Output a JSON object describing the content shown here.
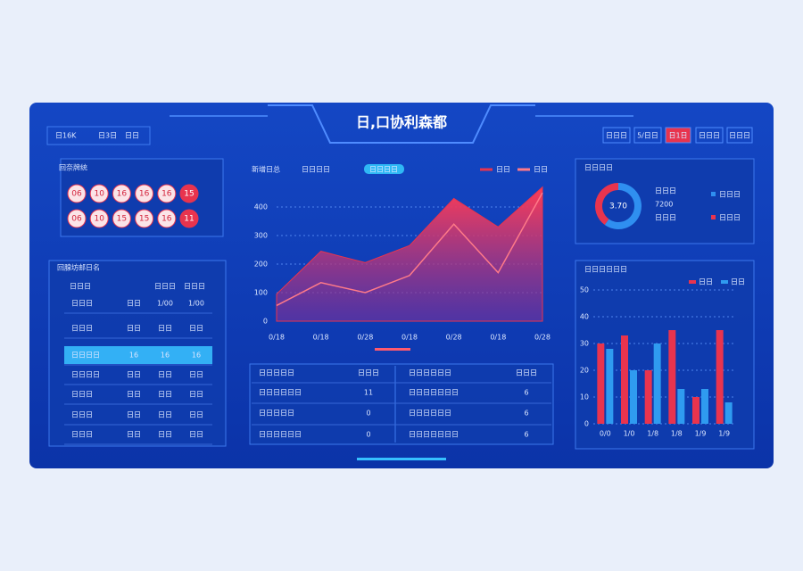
{
  "header": {
    "title": "日,口协利森都",
    "tab": [
      "日16K",
      "日3日",
      "日日"
    ],
    "buttons": [
      "日日日",
      "5/日日",
      "日1日",
      "日日日",
      "日日日"
    ]
  },
  "balls": {
    "title": "回奈牌统",
    "rows": [
      [
        "06",
        "10",
        "16",
        "16",
        "16",
        "15"
      ],
      [
        "06",
        "10",
        "15",
        "15",
        "16",
        "11"
      ]
    ]
  },
  "left_table": {
    "title": "回腺坊邮日名",
    "header": [
      "日日日",
      "日日日",
      "日日日"
    ],
    "rows": [
      [
        "日日日",
        "日日",
        "1/00",
        "1/00"
      ],
      [
        "日日日",
        "日日",
        "日日",
        "日日"
      ],
      [
        "日日日日",
        "16",
        "16",
        "16"
      ],
      [
        "日日日日",
        "日日",
        "日日",
        "日日"
      ],
      [
        "日日日",
        "日日",
        "日日",
        "日日"
      ],
      [
        "日日日",
        "日日",
        "日日",
        "日日"
      ],
      [
        "日日日",
        "日日",
        "日日",
        "日日"
      ]
    ]
  },
  "center_table": {
    "left_header": [
      "日日日日日",
      "日日日"
    ],
    "left_rows": [
      [
        "日日日日日日",
        "11"
      ],
      [
        "日日日日日",
        "0"
      ],
      [
        "日日日日日日",
        "0"
      ]
    ],
    "right_header": [
      "日日日日日日",
      "日日日"
    ],
    "right_rows": [
      [
        "日日日日日日日",
        "6"
      ],
      [
        "日日日日日日",
        "6"
      ],
      [
        "日日日日日日日",
        "6"
      ]
    ]
  },
  "chart_data": [
    {
      "type": "area",
      "title": "新增日总",
      "subtitle": "日日日日",
      "badge": "日日日日",
      "categories": [
        "0/18",
        "0/18",
        "0/28",
        "0/18",
        "0/28",
        "0/18",
        "0/28"
      ],
      "series": [
        {
          "name": "日日",
          "color": "#e8344e",
          "fill": true,
          "values": [
            95,
            245,
            205,
            265,
            430,
            330,
            470
          ]
        },
        {
          "name": "日日",
          "color": "#ff7a88",
          "fill": false,
          "values": [
            55,
            135,
            100,
            160,
            340,
            170,
            450
          ]
        }
      ],
      "ylim": [
        0,
        500
      ],
      "yticks": [
        0,
        100,
        200,
        300,
        400
      ],
      "grid": true
    },
    {
      "type": "bar",
      "title": "日日日日日日",
      "categories": [
        "0/0",
        "1/0",
        "1/8",
        "1/8",
        "1/9",
        "1/9"
      ],
      "series": [
        {
          "name": "日日",
          "color": "#e8344e",
          "values": [
            30,
            33,
            20,
            35,
            10,
            35
          ]
        },
        {
          "name": "日日",
          "color": "#2f9bf0",
          "values": [
            28,
            20,
            30,
            13,
            13,
            8
          ]
        }
      ],
      "ylim": [
        0,
        50
      ],
      "yticks": [
        0,
        10,
        20,
        30,
        40,
        50
      ],
      "grid": true
    },
    {
      "type": "pie",
      "title": "日日日日",
      "center_label": "3.70",
      "annotations": [
        "日日日",
        "7200",
        "日日日"
      ],
      "categories": [
        "日日日",
        "日日日"
      ],
      "values": [
        60,
        40
      ],
      "colors": [
        "#2f8ff0",
        "#e8344e"
      ]
    }
  ]
}
